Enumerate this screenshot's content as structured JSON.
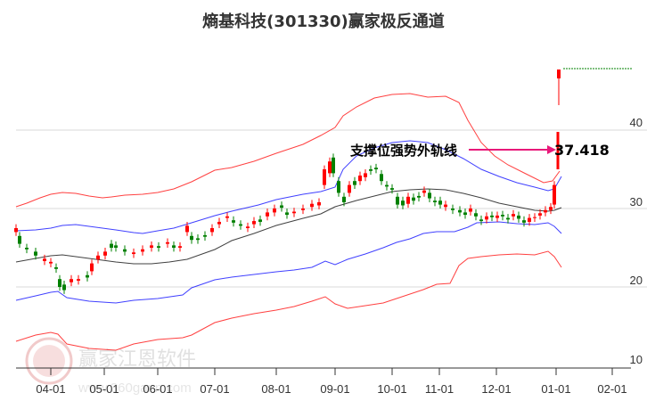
{
  "title": "熵基科技(301330)赢家极反通道",
  "annotation": {
    "label": "支撑位强势外轨线",
    "value": "37.418",
    "arrow_color": "#e8197a"
  },
  "watermark": {
    "name": "赢家江恩软件",
    "url": "www.360gann.com",
    "logo_chars": [
      "江",
      "赢",
      "恩",
      "家"
    ]
  },
  "colors": {
    "up": "#ff0000",
    "down": "#008000",
    "outer_band": "#ff0000",
    "inner_band": "#0000ff",
    "mid_line": "#000000",
    "grid": "#d9d9d9",
    "target_line": "#008000"
  },
  "chart_data": {
    "type": "candlestick",
    "title": "熵基科技(301330)赢家极反通道",
    "xlabel": "",
    "ylabel": "",
    "ylim": [
      10,
      47
    ],
    "y_ticks": [
      10,
      20,
      30,
      40
    ],
    "x_ticks": [
      "04-01",
      "05-01",
      "06-01",
      "07-01",
      "08-01",
      "09-01",
      "10-01",
      "11-01",
      "12-01",
      "01-01",
      "02-01"
    ],
    "grid": true,
    "legend": null,
    "annotations": [
      {
        "text": "支撑位强势外轨线",
        "value": 37.418,
        "arrow": "right"
      }
    ],
    "series": [
      {
        "name": "upper_outer_band",
        "color": "red",
        "points": [
          [
            "03-15",
            32.5
          ],
          [
            "04-01",
            33.5
          ],
          [
            "05-01",
            32.3
          ],
          [
            "06-01",
            32.6
          ],
          [
            "07-01",
            35.5
          ],
          [
            "08-01",
            38.5
          ],
          [
            "09-01",
            40
          ],
          [
            "09-15",
            44.5
          ],
          [
            "10-01",
            46
          ],
          [
            "11-01",
            45.5
          ],
          [
            "11-20",
            42
          ],
          [
            "12-01",
            39.5
          ],
          [
            "01-01",
            35.3
          ],
          [
            "01-10",
            37.5
          ]
        ]
      },
      {
        "name": "upper_inner_band",
        "color": "blue",
        "points": [
          [
            "03-15",
            29
          ],
          [
            "04-01",
            29.8
          ],
          [
            "05-01",
            28.2
          ],
          [
            "06-01",
            29
          ],
          [
            "07-01",
            32
          ],
          [
            "08-01",
            34
          ],
          [
            "09-01",
            36
          ],
          [
            "09-15",
            40
          ],
          [
            "10-01",
            42
          ],
          [
            "11-01",
            40
          ],
          [
            "12-01",
            35
          ],
          [
            "01-01",
            32.5
          ],
          [
            "01-10",
            34
          ]
        ]
      },
      {
        "name": "middle_line",
        "color": "black",
        "points": [
          [
            "03-15",
            25.5
          ],
          [
            "04-01",
            26.2
          ],
          [
            "05-01",
            25.4
          ],
          [
            "06-01",
            25
          ],
          [
            "07-01",
            27.5
          ],
          [
            "08-01",
            30
          ],
          [
            "09-01",
            31.5
          ],
          [
            "10-01",
            32.5
          ],
          [
            "11-01",
            32.8
          ],
          [
            "12-01",
            31
          ],
          [
            "01-01",
            29.5
          ],
          [
            "01-10",
            30
          ]
        ]
      },
      {
        "name": "lower_inner_band",
        "color": "blue",
        "points": [
          [
            "03-15",
            19.5
          ],
          [
            "04-01",
            21
          ],
          [
            "05-01",
            19.3
          ],
          [
            "06-01",
            20
          ],
          [
            "07-01",
            22.5
          ],
          [
            "08-01",
            24.5
          ],
          [
            "09-01",
            26
          ],
          [
            "10-01",
            27.7
          ],
          [
            "11-01",
            28.5
          ],
          [
            "12-01",
            26.3
          ],
          [
            "01-01",
            26
          ],
          [
            "01-10",
            24.8
          ]
        ]
      },
      {
        "name": "lower_outer_band",
        "color": "red",
        "points": [
          [
            "03-15",
            14.8
          ],
          [
            "04-01",
            16.2
          ],
          [
            "05-01",
            13.7
          ],
          [
            "06-01",
            15
          ],
          [
            "07-01",
            17
          ],
          [
            "08-01",
            17.5
          ],
          [
            "09-01",
            18.7
          ],
          [
            "09-10",
            16.8
          ],
          [
            "10-01",
            18.5
          ],
          [
            "11-01",
            20.5
          ],
          [
            "11-15",
            21.5
          ],
          [
            "12-01",
            23.5
          ],
          [
            "01-01",
            24
          ],
          [
            "01-10",
            21.5
          ]
        ]
      },
      {
        "name": "close_approx",
        "color": "mixed",
        "points": [
          [
            "03-15",
            27
          ],
          [
            "04-01",
            25
          ],
          [
            "04-10",
            20
          ],
          [
            "05-01",
            20.5
          ],
          [
            "05-10",
            24.5
          ],
          [
            "06-01",
            24
          ],
          [
            "07-01",
            27.5
          ],
          [
            "08-01",
            29.5
          ],
          [
            "09-01",
            30.5
          ],
          [
            "09-05",
            37
          ],
          [
            "09-15",
            33
          ],
          [
            "10-01",
            34.5
          ],
          [
            "10-15",
            31
          ],
          [
            "11-01",
            32
          ],
          [
            "12-01",
            28.5
          ],
          [
            "12-20",
            28
          ],
          [
            "01-01",
            29.5
          ],
          [
            "01-05",
            33
          ]
        ]
      }
    ],
    "target": {
      "value": 37.418,
      "projected_high": 47.5,
      "projected_candle_low": 43
    }
  }
}
